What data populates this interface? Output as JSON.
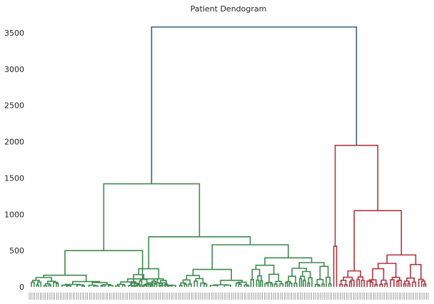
{
  "chart_data": {
    "type": "dendrogram",
    "title": "Patient Dendogram",
    "xlabel": "",
    "ylabel": "",
    "ylim": [
      0,
      3650
    ],
    "yticks": [
      0,
      500,
      1000,
      1500,
      2000,
      2500,
      3000,
      3500
    ],
    "grid": false,
    "legend": "none",
    "colors": {
      "root": "#3b5f7e",
      "cluster_green": "#3d8a4f",
      "cluster_red": "#b0363e",
      "leaf_labels": "#666666"
    },
    "leaf_count": 220,
    "root_merge": {
      "height": 3580,
      "children": [
        {
          "cluster": "green",
          "merge_height": 1420,
          "children": [
            {
              "merge_height": 500
            },
            {
              "merge_height": 690,
              "children": [
                {
                  "merge_height": 250
                },
                {
                  "merge_height": 580
                }
              ]
            }
          ]
        },
        {
          "cluster": "red",
          "merge_height": 1950,
          "children": [
            {
              "merge_height": 560
            },
            {
              "merge_height": 1050,
              "children": [
                {
                  "merge_height": 220
                },
                {
                  "merge_height": 440
                }
              ]
            }
          ]
        }
      ]
    }
  }
}
